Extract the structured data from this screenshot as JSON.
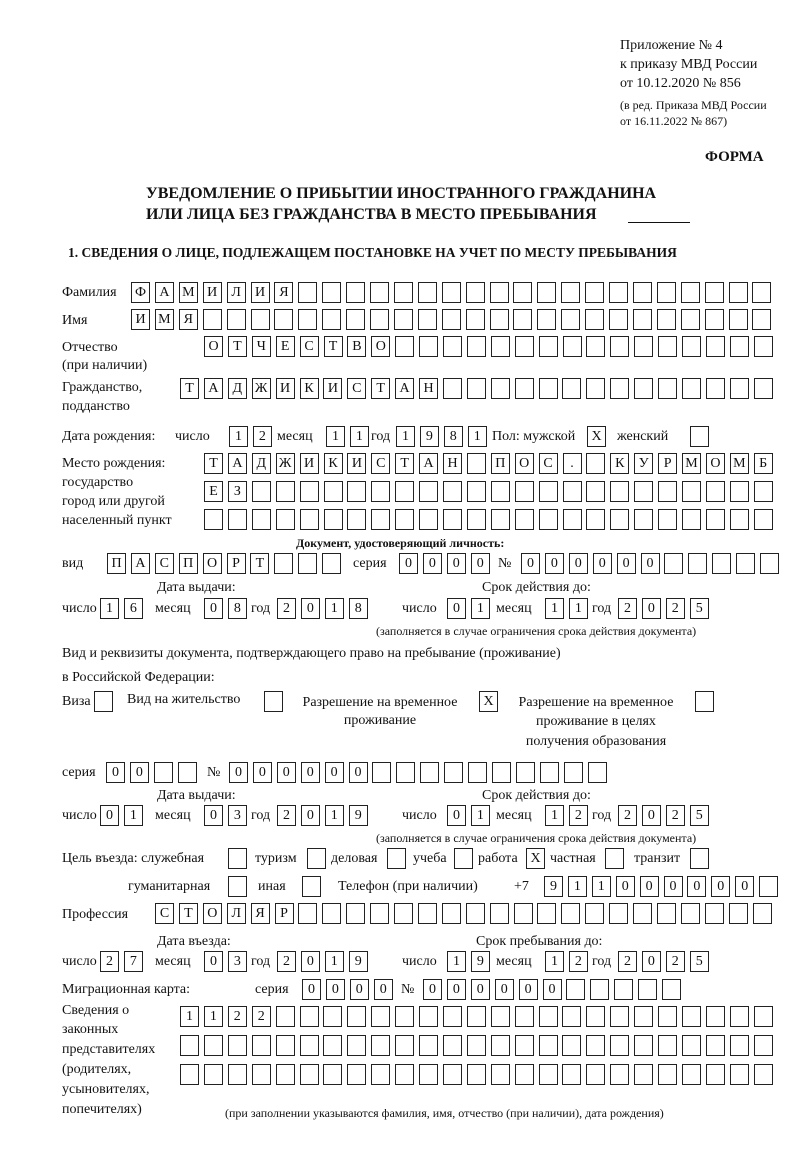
{
  "header": {
    "appendix": "Приложение № 4",
    "order": "к приказу МВД России",
    "order_date": "от 10.12.2020 № 856",
    "edition": "(в ред. Приказа МВД России",
    "edition_date": "от 16.11.2022 № 867)",
    "form_label": "ФОРМА",
    "title_line1": "УВЕДОМЛЕНИЕ О ПРИБЫТИИ ИНОСТРАННОГО ГРАЖДАНИНА",
    "title_line2": "ИЛИ ЛИЦА БЕЗ ГРАЖДАНСТВА В МЕСТО ПРЕБЫВАНИЯ",
    "section1": "1. СВЕДЕНИЯ О ЛИЦЕ, ПОДЛЕЖАЩЕМ ПОСТАНОВКЕ НА УЧЕТ ПО МЕСТУ ПРЕБЫВАНИЯ"
  },
  "person": {
    "surname_label": "Фамилия",
    "surname": "ФАМИЛИЯ",
    "name_label": "Имя",
    "name": "ИМЯ",
    "patronymic_label1": "Отчество",
    "patronymic_label2": "(при наличии)",
    "patronymic": "ОТЧЕСТВО",
    "citizenship_label1": "Гражданство,",
    "citizenship_label2": "подданство",
    "citizenship": "ТАДЖИКИСТАН",
    "birth_label": "Дата рождения:",
    "day_label": "число",
    "month_label": "месяц",
    "year_label": "год",
    "birth_day": "12",
    "birth_month": "11",
    "birth_year": "1981",
    "sex_label": "Пол: мужской",
    "sex_male": "X",
    "female_label": "женский",
    "sex_female": "",
    "birthplace_label1": "Место рождения:",
    "birthplace_label2": "государство",
    "birthplace_label3": "город или другой",
    "birthplace_label4": "населенный пункт",
    "birthplace_line1": "ТАДЖИКИСТАН ПОС. КУРМОМБ",
    "birthplace_line2": "ЕЗ",
    "birthplace_line3": ""
  },
  "id_document": {
    "heading": "Документ, удостоверяющий личность:",
    "type_label": "вид",
    "type": "ПАСПОРТ",
    "series_label": "серия",
    "series": "0000",
    "number_label": "№",
    "number": "000000",
    "issue_label": "Дата выдачи:",
    "issue_day": "16",
    "issue_month": "08",
    "issue_year": "2018",
    "valid_label": "Срок действия до:",
    "valid_day": "01",
    "valid_month": "11",
    "valid_year": "2025",
    "note": "(заполняется в случае ограничения срока действия документа)"
  },
  "stay_document": {
    "heading1": "Вид и реквизиты документа, подтверждающего право на пребывание (проживание)",
    "heading2": "в Российской Федерации:",
    "visa_label": "Виза",
    "visa": "",
    "residence_label": "Вид на жительство",
    "residence": "",
    "temp_label1": "Разрешение на временное",
    "temp_label2": "проживание",
    "temp": "X",
    "edu_label1": "Разрешение на временное",
    "edu_label2": "проживание в целях",
    "edu_label3": "получения образования",
    "edu": "",
    "series_label": "серия",
    "series": "00",
    "number_label": "№",
    "number": "000000",
    "issue_label": "Дата выдачи:",
    "issue_day": "01",
    "issue_month": "03",
    "issue_year": "2019",
    "valid_label": "Срок действия до:",
    "valid_day": "01",
    "valid_month": "12",
    "valid_year": "2025",
    "note": "(заполняется в случае ограничения срока действия документа)"
  },
  "purpose": {
    "label": "Цель въезда: служебная",
    "official": "",
    "tourism_label": "туризм",
    "tourism": "",
    "business_label": "деловая",
    "business": "",
    "study_label": "учеба",
    "study": "",
    "work_label": "работа",
    "work": "X",
    "private_label": "частная",
    "private": "",
    "transit_label": "транзит",
    "transit": "",
    "humanitarian_label": "гуманитарная",
    "humanitarian": "",
    "other_label": "иная",
    "other": ""
  },
  "contact": {
    "phone_label": "Телефон (при наличии)",
    "phone_prefix": "+7",
    "phone": "911000000"
  },
  "profession": {
    "label": "Профессия",
    "value": "СТОЛЯР"
  },
  "entry": {
    "entry_label": "Дата въезда:",
    "entry_day": "27",
    "entry_month": "03",
    "entry_year": "2019",
    "stay_label": "Срок пребывания до:",
    "stay_day": "19",
    "stay_month": "12",
    "stay_year": "2025"
  },
  "migration_card": {
    "label": "Миграционная карта:",
    "series_label": "серия",
    "series": "0000",
    "number_label": "№",
    "number": "000000"
  },
  "representatives": {
    "label1": "Сведения о",
    "label2": "законных",
    "label3": "представителях",
    "label4": "(родителях,",
    "label5": "усыновителях,",
    "label6": "попечителях)",
    "line1": "1122",
    "line2": "",
    "line3": "",
    "note": "(при заполнении указываются фамилия, имя, отчество (при наличии), дата рождения)"
  }
}
